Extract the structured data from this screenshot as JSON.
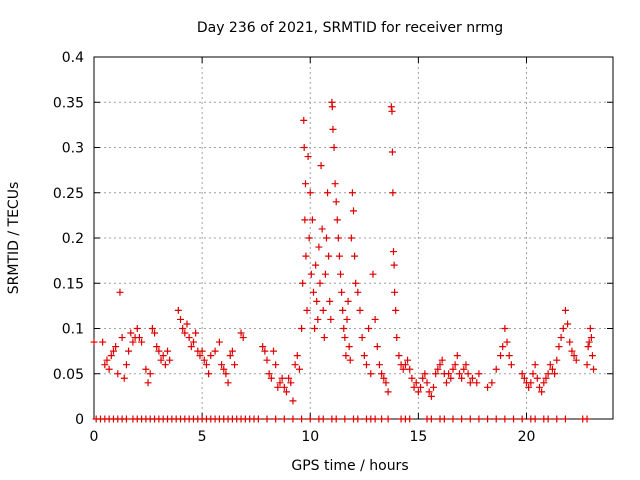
{
  "chart_data": {
    "type": "scatter",
    "title": "Day 236 of 2021, SRMTID for receiver nrmg",
    "xlabel": "GPS time / hours",
    "ylabel": "SRMTID / TECUs",
    "xlim": [
      0,
      24
    ],
    "ylim": [
      0,
      0.4
    ],
    "x_ticks": [
      0,
      5,
      10,
      15,
      20
    ],
    "x_tick_labels": [
      "0",
      "5",
      "10",
      "15",
      "20"
    ],
    "y_ticks": [
      0,
      0.05,
      0.1,
      0.15,
      0.2,
      0.25,
      0.3,
      0.35,
      0.4
    ],
    "y_tick_labels": [
      "0",
      "0.05",
      "0.1",
      "0.15",
      "0.2",
      "0.25",
      "0.3",
      "0.35",
      "0.4"
    ],
    "grid": true,
    "marker": "+",
    "color": "#dd0000",
    "series": [
      {
        "name": "SRMTID",
        "points": [
          [
            0.0,
            0.085
          ],
          [
            0.4,
            0.085
          ],
          [
            0.5,
            0.06
          ],
          [
            0.6,
            0.065
          ],
          [
            0.7,
            0.055
          ],
          [
            0.8,
            0.07
          ],
          [
            0.9,
            0.075
          ],
          [
            1.0,
            0.08
          ],
          [
            1.1,
            0.05
          ],
          [
            1.2,
            0.14
          ],
          [
            1.3,
            0.09
          ],
          [
            1.4,
            0.045
          ],
          [
            1.5,
            0.06
          ],
          [
            1.6,
            0.075
          ],
          [
            1.7,
            0.095
          ],
          [
            1.8,
            0.085
          ],
          [
            1.9,
            0.09
          ],
          [
            2.0,
            0.1
          ],
          [
            2.1,
            0.09
          ],
          [
            2.2,
            0.085
          ],
          [
            2.4,
            0.055
          ],
          [
            2.5,
            0.04
          ],
          [
            2.6,
            0.05
          ],
          [
            2.7,
            0.1
          ],
          [
            2.8,
            0.095
          ],
          [
            2.9,
            0.08
          ],
          [
            3.0,
            0.075
          ],
          [
            3.1,
            0.065
          ],
          [
            3.2,
            0.07
          ],
          [
            3.3,
            0.06
          ],
          [
            3.4,
            0.075
          ],
          [
            3.5,
            0.065
          ],
          [
            3.9,
            0.12
          ],
          [
            4.0,
            0.11
          ],
          [
            4.1,
            0.1
          ],
          [
            4.2,
            0.095
          ],
          [
            4.3,
            0.105
          ],
          [
            4.4,
            0.09
          ],
          [
            4.5,
            0.08
          ],
          [
            4.6,
            0.085
          ],
          [
            4.7,
            0.095
          ],
          [
            4.8,
            0.075
          ],
          [
            4.9,
            0.07
          ],
          [
            5.0,
            0.075
          ],
          [
            5.1,
            0.065
          ],
          [
            5.2,
            0.06
          ],
          [
            5.3,
            0.05
          ],
          [
            5.4,
            0.07
          ],
          [
            5.6,
            0.075
          ],
          [
            5.8,
            0.085
          ],
          [
            5.9,
            0.06
          ],
          [
            6.0,
            0.055
          ],
          [
            6.1,
            0.05
          ],
          [
            6.2,
            0.04
          ],
          [
            6.3,
            0.07
          ],
          [
            6.4,
            0.075
          ],
          [
            6.5,
            0.06
          ],
          [
            6.8,
            0.095
          ],
          [
            6.9,
            0.09
          ],
          [
            7.8,
            0.08
          ],
          [
            7.9,
            0.075
          ],
          [
            8.0,
            0.065
          ],
          [
            8.1,
            0.05
          ],
          [
            8.2,
            0.045
          ],
          [
            8.3,
            0.075
          ],
          [
            8.4,
            0.06
          ],
          [
            8.5,
            0.035
          ],
          [
            8.6,
            0.04
          ],
          [
            8.7,
            0.045
          ],
          [
            8.8,
            0.035
          ],
          [
            8.9,
            0.03
          ],
          [
            9.0,
            0.045
          ],
          [
            9.1,
            0.04
          ],
          [
            9.2,
            0.02
          ],
          [
            9.3,
            0.06
          ],
          [
            9.4,
            0.07
          ],
          [
            9.5,
            0.055
          ],
          [
            9.6,
            0.1
          ],
          [
            9.65,
            0.15
          ],
          [
            9.7,
            0.33
          ],
          [
            9.72,
            0.3
          ],
          [
            9.75,
            0.22
          ],
          [
            9.78,
            0.26
          ],
          [
            9.8,
            0.18
          ],
          [
            9.85,
            0.12
          ],
          [
            9.9,
            0.29
          ],
          [
            9.95,
            0.2
          ],
          [
            10.0,
            0.25
          ],
          [
            10.05,
            0.16
          ],
          [
            10.1,
            0.22
          ],
          [
            10.15,
            0.14
          ],
          [
            10.2,
            0.1
          ],
          [
            10.25,
            0.17
          ],
          [
            10.3,
            0.13
          ],
          [
            10.35,
            0.11
          ],
          [
            10.4,
            0.19
          ],
          [
            10.45,
            0.15
          ],
          [
            10.5,
            0.28
          ],
          [
            10.55,
            0.21
          ],
          [
            10.6,
            0.12
          ],
          [
            10.65,
            0.09
          ],
          [
            10.7,
            0.16
          ],
          [
            10.75,
            0.2
          ],
          [
            10.8,
            0.25
          ],
          [
            10.85,
            0.18
          ],
          [
            10.9,
            0.13
          ],
          [
            10.95,
            0.11
          ],
          [
            11.0,
            0.35
          ],
          [
            11.02,
            0.345
          ],
          [
            11.05,
            0.32
          ],
          [
            11.1,
            0.3
          ],
          [
            11.15,
            0.26
          ],
          [
            11.2,
            0.24
          ],
          [
            11.25,
            0.22
          ],
          [
            11.3,
            0.2
          ],
          [
            11.35,
            0.18
          ],
          [
            11.4,
            0.16
          ],
          [
            11.45,
            0.14
          ],
          [
            11.5,
            0.12
          ],
          [
            11.55,
            0.1
          ],
          [
            11.6,
            0.09
          ],
          [
            11.65,
            0.07
          ],
          [
            11.7,
            0.11
          ],
          [
            11.75,
            0.13
          ],
          [
            11.8,
            0.08
          ],
          [
            11.85,
            0.065
          ],
          [
            11.9,
            0.2
          ],
          [
            11.95,
            0.25
          ],
          [
            12.0,
            0.23
          ],
          [
            12.05,
            0.18
          ],
          [
            12.1,
            0.15
          ],
          [
            12.2,
            0.14
          ],
          [
            12.3,
            0.12
          ],
          [
            12.4,
            0.09
          ],
          [
            12.5,
            0.07
          ],
          [
            12.6,
            0.06
          ],
          [
            12.7,
            0.1
          ],
          [
            12.8,
            0.05
          ],
          [
            12.9,
            0.16
          ],
          [
            13.0,
            0.11
          ],
          [
            13.1,
            0.08
          ],
          [
            13.2,
            0.06
          ],
          [
            13.3,
            0.05
          ],
          [
            13.4,
            0.045
          ],
          [
            13.5,
            0.04
          ],
          [
            13.6,
            0.03
          ],
          [
            13.75,
            0.345
          ],
          [
            13.78,
            0.34
          ],
          [
            13.8,
            0.295
          ],
          [
            13.82,
            0.25
          ],
          [
            13.85,
            0.185
          ],
          [
            13.88,
            0.17
          ],
          [
            13.9,
            0.14
          ],
          [
            13.95,
            0.12
          ],
          [
            14.0,
            0.09
          ],
          [
            14.1,
            0.07
          ],
          [
            14.2,
            0.06
          ],
          [
            14.3,
            0.055
          ],
          [
            14.4,
            0.06
          ],
          [
            14.5,
            0.065
          ],
          [
            14.6,
            0.055
          ],
          [
            14.7,
            0.045
          ],
          [
            14.8,
            0.035
          ],
          [
            14.9,
            0.04
          ],
          [
            15.0,
            0.03
          ],
          [
            15.1,
            0.035
          ],
          [
            15.2,
            0.045
          ],
          [
            15.3,
            0.05
          ],
          [
            15.4,
            0.04
          ],
          [
            15.5,
            0.03
          ],
          [
            15.6,
            0.025
          ],
          [
            15.7,
            0.035
          ],
          [
            15.8,
            0.05
          ],
          [
            15.9,
            0.055
          ],
          [
            16.0,
            0.06
          ],
          [
            16.1,
            0.065
          ],
          [
            16.2,
            0.05
          ],
          [
            16.3,
            0.04
          ],
          [
            16.4,
            0.05
          ],
          [
            16.5,
            0.045
          ],
          [
            16.6,
            0.055
          ],
          [
            16.7,
            0.06
          ],
          [
            16.8,
            0.07
          ],
          [
            16.9,
            0.05
          ],
          [
            17.0,
            0.045
          ],
          [
            17.1,
            0.055
          ],
          [
            17.2,
            0.06
          ],
          [
            17.3,
            0.05
          ],
          [
            17.4,
            0.04
          ],
          [
            17.5,
            0.045
          ],
          [
            17.7,
            0.04
          ],
          [
            17.8,
            0.05
          ],
          [
            18.2,
            0.035
          ],
          [
            18.4,
            0.04
          ],
          [
            18.6,
            0.055
          ],
          [
            18.8,
            0.07
          ],
          [
            18.9,
            0.08
          ],
          [
            19.0,
            0.1
          ],
          [
            19.1,
            0.085
          ],
          [
            19.2,
            0.07
          ],
          [
            19.3,
            0.06
          ],
          [
            19.8,
            0.05
          ],
          [
            19.9,
            0.045
          ],
          [
            20.0,
            0.04
          ],
          [
            20.1,
            0.035
          ],
          [
            20.2,
            0.04
          ],
          [
            20.3,
            0.05
          ],
          [
            20.4,
            0.06
          ],
          [
            20.5,
            0.045
          ],
          [
            20.6,
            0.035
          ],
          [
            20.7,
            0.03
          ],
          [
            20.8,
            0.04
          ],
          [
            20.9,
            0.045
          ],
          [
            21.0,
            0.05
          ],
          [
            21.1,
            0.06
          ],
          [
            21.2,
            0.055
          ],
          [
            21.3,
            0.05
          ],
          [
            21.4,
            0.065
          ],
          [
            21.5,
            0.08
          ],
          [
            21.6,
            0.09
          ],
          [
            21.7,
            0.1
          ],
          [
            21.8,
            0.12
          ],
          [
            21.9,
            0.105
          ],
          [
            22.0,
            0.085
          ],
          [
            22.1,
            0.075
          ],
          [
            22.2,
            0.07
          ],
          [
            22.3,
            0.065
          ],
          [
            22.8,
            0.06
          ],
          [
            22.85,
            0.08
          ],
          [
            22.9,
            0.085
          ],
          [
            22.95,
            0.1
          ],
          [
            23.0,
            0.09
          ],
          [
            23.05,
            0.07
          ],
          [
            23.1,
            0.055
          ]
        ]
      }
    ],
    "zero_points_x": [
      0.1,
      0.3,
      0.5,
      0.7,
      0.9,
      1.1,
      1.3,
      1.5,
      1.8,
      2.0,
      2.2,
      2.4,
      2.6,
      2.8,
      3.0,
      3.2,
      3.4,
      3.6,
      3.8,
      4.0,
      4.2,
      4.4,
      4.6,
      4.8,
      5.0,
      5.2,
      5.4,
      5.6,
      5.8,
      6.0,
      6.2,
      6.4,
      6.6,
      6.8,
      7.0,
      7.2,
      7.4,
      7.6,
      8.0,
      8.4,
      8.8,
      9.2,
      9.6,
      10.0,
      10.4,
      10.6,
      11.0,
      11.2,
      11.6,
      12.0,
      12.2,
      12.6,
      12.8,
      13.0,
      13.3,
      13.6,
      14.2,
      14.4,
      14.6,
      15.4,
      15.6,
      16.0,
      16.2,
      16.6,
      17.0,
      17.4,
      17.8,
      18.2,
      18.6,
      19.0,
      19.4,
      19.8,
      20.2,
      20.4,
      20.8,
      21.0,
      21.4,
      21.8,
      22.6,
      22.8
    ]
  }
}
